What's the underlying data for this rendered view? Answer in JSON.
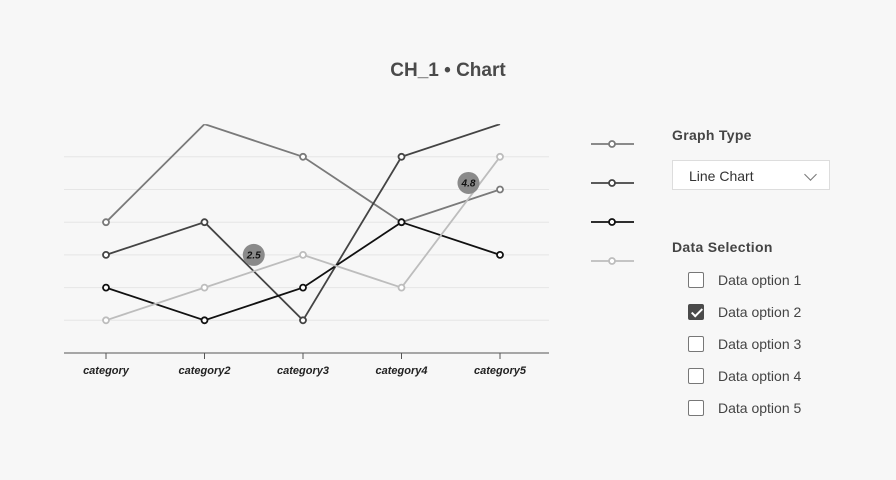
{
  "title": "CH_1 • Chart",
  "chart_data": {
    "type": "line",
    "categories": [
      "category",
      "category2",
      "category3",
      "category4",
      "category5"
    ],
    "ylim": [
      0,
      7
    ],
    "grid": true,
    "series": [
      {
        "values": [
          4,
          7,
          6,
          4,
          5
        ],
        "color": "#7a7a7a"
      },
      {
        "values": [
          3,
          4,
          1,
          6,
          7
        ],
        "color": "#444444"
      },
      {
        "values": [
          2,
          1,
          2,
          4,
          3
        ],
        "color": "#111111"
      },
      {
        "values": [
          1,
          2,
          3,
          2,
          6
        ],
        "color": "#bdbdbd"
      }
    ],
    "annotations": [
      {
        "text": "2.5",
        "x": 1.5,
        "y": 3
      },
      {
        "text": "4.8",
        "x": 3.68,
        "y": 5.2
      }
    ],
    "legend_position": "right"
  },
  "panel": {
    "graph_type_heading": "Graph Type",
    "graph_type_value": "Line Chart",
    "data_selection_heading": "Data Selection",
    "options": [
      {
        "label": "Data option 1",
        "checked": false
      },
      {
        "label": "Data option 2",
        "checked": true
      },
      {
        "label": "Data option 3",
        "checked": false
      },
      {
        "label": "Data option 4",
        "checked": false
      },
      {
        "label": "Data option 5",
        "checked": false
      }
    ]
  }
}
